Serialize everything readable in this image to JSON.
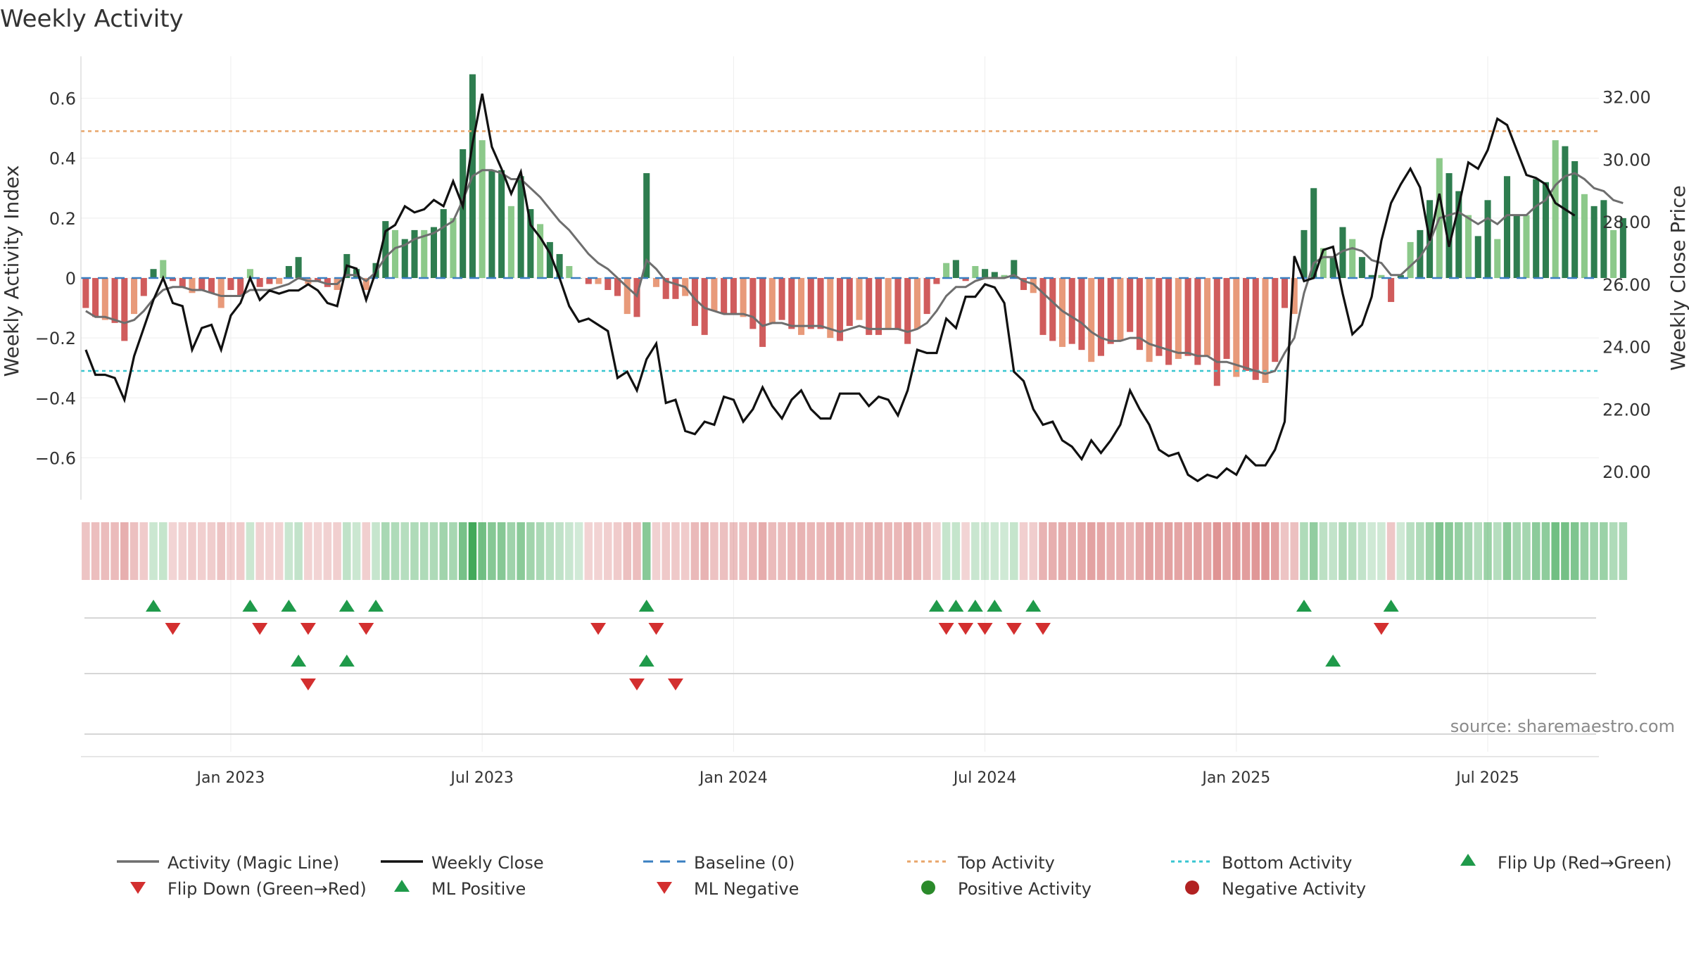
{
  "chart_data": {
    "type": "bar",
    "title": "Weekly Activity",
    "ylabel": "Weekly Activity Index",
    "y2label": "Weekly Close Price",
    "ylim": [
      -0.74,
      0.74
    ],
    "y2lim": [
      19.1,
      33.3
    ],
    "xrange": [
      -0.5,
      156.5
    ],
    "yticks": [
      0.6,
      0.4,
      0.2,
      0,
      -0.2,
      -0.4,
      -0.6
    ],
    "ytick_labels": [
      "0.6",
      "0.4",
      "0.2",
      "0",
      "−0.2",
      "−0.4",
      "−0.6"
    ],
    "y2ticks": [
      32,
      30,
      28,
      26,
      24,
      22,
      20
    ],
    "y2tick_labels": [
      "32.00",
      "30.00",
      "28.00",
      "26.00",
      "24.00",
      "22.00",
      "20.00"
    ],
    "xticks": [
      {
        "week": 15,
        "label": "Jan 2023"
      },
      {
        "week": 41,
        "label": "Jul 2023"
      },
      {
        "week": 67,
        "label": "Jan 2024"
      },
      {
        "week": 93,
        "label": "Jul 2024"
      },
      {
        "week": 119,
        "label": "Jan 2025"
      },
      {
        "week": 145,
        "label": "Jul 2025"
      }
    ],
    "top_activity": 0.49,
    "bottom_activity": -0.31,
    "baseline": 0,
    "colors": {
      "pos_strong": "#2e7d4f",
      "pos_light": "#8cc98a",
      "neg_strong": "#d05c5c",
      "neg_light": "#e89a7a",
      "magic": "#6e6e6e",
      "close": "#111111",
      "baseline": "#3a7fc1",
      "top": "#e8a56a",
      "bottom": "#38c6d0",
      "tri_up": "#1f9a4a",
      "tri_down": "#d32f2f",
      "dot_pos": "#2a8a2a",
      "dot_neg": "#b22222"
    },
    "activity": [
      -0.1,
      -0.13,
      -0.14,
      -0.15,
      -0.21,
      -0.12,
      -0.06,
      0.03,
      0.06,
      -0.01,
      -0.03,
      -0.05,
      -0.04,
      -0.05,
      -0.1,
      -0.04,
      -0.06,
      0.03,
      -0.03,
      -0.02,
      -0.02,
      0.04,
      0.07,
      -0.02,
      -0.01,
      -0.03,
      -0.04,
      0.08,
      0.03,
      -0.04,
      0.05,
      0.19,
      0.16,
      0.13,
      0.16,
      0.16,
      0.17,
      0.23,
      0.2,
      0.43,
      0.68,
      0.46,
      0.36,
      0.36,
      0.24,
      0.34,
      0.23,
      0.18,
      0.12,
      0.08,
      0.04,
      0,
      -0.02,
      -0.02,
      -0.04,
      -0.06,
      -0.12,
      -0.13,
      0.35,
      -0.03,
      -0.07,
      -0.07,
      -0.06,
      -0.16,
      -0.19,
      -0.11,
      -0.12,
      -0.12,
      -0.13,
      -0.17,
      -0.23,
      -0.15,
      -0.14,
      -0.17,
      -0.19,
      -0.17,
      -0.17,
      -0.2,
      -0.21,
      -0.16,
      -0.14,
      -0.19,
      -0.19,
      -0.17,
      -0.17,
      -0.22,
      -0.17,
      -0.12,
      -0.02,
      0.05,
      0.06,
      -0.01,
      0.04,
      0.03,
      0.02,
      0.01,
      0.06,
      -0.04,
      -0.05,
      -0.19,
      -0.21,
      -0.23,
      -0.22,
      -0.24,
      -0.28,
      -0.26,
      -0.22,
      -0.21,
      -0.18,
      -0.24,
      -0.28,
      -0.26,
      -0.29,
      -0.27,
      -0.26,
      -0.29,
      -0.26,
      -0.36,
      -0.27,
      -0.33,
      -0.31,
      -0.34,
      -0.35,
      -0.28,
      -0.1,
      -0.12,
      0.16,
      0.3,
      0.1,
      0.07,
      0.17,
      0.13,
      0.07,
      0.01,
      0.01,
      -0.08,
      0.01,
      0.12,
      0.16,
      0.26,
      0.4,
      0.35,
      0.29,
      0.21,
      0.14,
      0.26,
      0.13,
      0.34,
      0.21,
      0.21,
      0.33,
      0.32,
      0.46,
      0.44,
      0.39,
      0.28,
      0.24,
      0.26,
      0.16,
      0.2
    ],
    "magic_line": [
      -0.11,
      -0.13,
      -0.13,
      -0.14,
      -0.15,
      -0.14,
      -0.11,
      -0.07,
      -0.04,
      -0.03,
      -0.03,
      -0.04,
      -0.04,
      -0.05,
      -0.06,
      -0.06,
      -0.06,
      -0.04,
      -0.04,
      -0.04,
      -0.03,
      -0.02,
      0,
      -0.01,
      -0.01,
      -0.02,
      -0.02,
      0.01,
      0.01,
      -0.01,
      0.02,
      0.07,
      0.1,
      0.11,
      0.13,
      0.14,
      0.15,
      0.17,
      0.19,
      0.26,
      0.34,
      0.36,
      0.36,
      0.35,
      0.33,
      0.33,
      0.3,
      0.27,
      0.23,
      0.19,
      0.16,
      0.12,
      0.08,
      0.05,
      0.03,
      0,
      -0.03,
      -0.06,
      0.06,
      0.03,
      -0.01,
      -0.02,
      -0.03,
      -0.07,
      -0.1,
      -0.11,
      -0.12,
      -0.12,
      -0.12,
      -0.13,
      -0.16,
      -0.15,
      -0.15,
      -0.16,
      -0.16,
      -0.16,
      -0.16,
      -0.17,
      -0.18,
      -0.17,
      -0.16,
      -0.17,
      -0.17,
      -0.17,
      -0.17,
      -0.18,
      -0.17,
      -0.15,
      -0.11,
      -0.06,
      -0.03,
      -0.03,
      -0.01,
      0,
      0,
      0,
      0.01,
      -0.01,
      -0.02,
      -0.05,
      -0.08,
      -0.11,
      -0.13,
      -0.15,
      -0.18,
      -0.2,
      -0.21,
      -0.21,
      -0.2,
      -0.2,
      -0.22,
      -0.23,
      -0.24,
      -0.25,
      -0.25,
      -0.26,
      -0.26,
      -0.28,
      -0.28,
      -0.29,
      -0.3,
      -0.31,
      -0.32,
      -0.31,
      -0.25,
      -0.2,
      -0.05,
      0.05,
      0.07,
      0.07,
      0.09,
      0.1,
      0.09,
      0.06,
      0.05,
      0.01,
      0.01,
      0.04,
      0.07,
      0.12,
      0.2,
      0.21,
      0.22,
      0.2,
      0.18,
      0.2,
      0.18,
      0.21,
      0.21,
      0.21,
      0.24,
      0.26,
      0.31,
      0.34,
      0.35,
      0.33,
      0.3,
      0.29,
      0.26,
      0.25
    ],
    "weekly_close": [
      23.9,
      23.1,
      23.1,
      23.0,
      22.3,
      23.7,
      24.6,
      25.5,
      26.2,
      25.4,
      25.3,
      23.9,
      24.6,
      24.7,
      23.9,
      25.0,
      25.4,
      26.2,
      25.5,
      25.8,
      25.7,
      25.8,
      25.8,
      26.0,
      25.8,
      25.4,
      25.3,
      26.6,
      26.5,
      25.5,
      26.4,
      27.7,
      27.9,
      28.5,
      28.3,
      28.4,
      28.7,
      28.5,
      29.3,
      28.5,
      30.5,
      32.1,
      30.4,
      29.7,
      28.9,
      29.6,
      27.9,
      27.5,
      27.0,
      26.2,
      25.3,
      24.8,
      24.9,
      24.7,
      24.5,
      23.0,
      23.2,
      22.6,
      23.6,
      24.1,
      22.2,
      22.3,
      21.3,
      21.2,
      21.6,
      21.5,
      22.4,
      22.3,
      21.6,
      22.0,
      22.7,
      22.1,
      21.7,
      22.3,
      22.6,
      22.0,
      21.7,
      21.7,
      22.5,
      22.5,
      22.5,
      22.1,
      22.4,
      22.3,
      21.8,
      22.6,
      23.9,
      23.8,
      23.8,
      24.9,
      24.6,
      25.6,
      25.6,
      26.0,
      25.9,
      25.4,
      23.2,
      22.9,
      22.0,
      21.5,
      21.6,
      21.0,
      20.8,
      20.4,
      21.0,
      20.6,
      21.0,
      21.5,
      22.6,
      22.0,
      21.5,
      20.7,
      20.5,
      20.6,
      19.9,
      19.7,
      19.9,
      19.8,
      20.1,
      19.9,
      20.5,
      20.2,
      20.2,
      20.7,
      21.6,
      26.9,
      26.1,
      26.2,
      27.1,
      27.2,
      25.7,
      24.4,
      24.7,
      25.6,
      27.4,
      28.6,
      29.2,
      29.7,
      29.1,
      27.4,
      28.9,
      27.2,
      28.5,
      29.9,
      29.7,
      30.3,
      31.3,
      31.1,
      30.3,
      29.5,
      29.4,
      29.2,
      28.6,
      28.4,
      28.2
    ],
    "heat_cells": [
      "-0.10",
      "-0.08"
    ],
    "flip_up": [
      7,
      17,
      21,
      27,
      30,
      58,
      88,
      90,
      92,
      94,
      98,
      126,
      135
    ],
    "flip_down": [
      9,
      18,
      23,
      29,
      53,
      59,
      89,
      91,
      93,
      96,
      99,
      134
    ],
    "ml_positive": [
      22,
      27,
      58,
      129
    ],
    "ml_negative": [
      23,
      57,
      61
    ],
    "positive_activity": [],
    "negative_activity": [],
    "source": "source: sharemaestro.com",
    "legend": [
      {
        "label": "Activity (Magic Line)",
        "kind": "line",
        "color": "#6e6e6e"
      },
      {
        "label": "Weekly Close",
        "kind": "line",
        "color": "#111111"
      },
      {
        "label": "Baseline (0)",
        "kind": "dash",
        "color": "#3a7fc1"
      },
      {
        "label": "Top Activity",
        "kind": "dot",
        "color": "#e8a56a"
      },
      {
        "label": "Bottom Activity",
        "kind": "dot",
        "color": "#38c6d0"
      },
      {
        "label": "Flip Up (Red→Green)",
        "kind": "tri-up",
        "color": "#1f9a4a"
      },
      {
        "label": "Flip Down (Green→Red)",
        "kind": "tri-down",
        "color": "#d32f2f"
      },
      {
        "label": "ML Positive",
        "kind": "tri-up",
        "color": "#1f9a4a"
      },
      {
        "label": "ML Negative",
        "kind": "tri-down",
        "color": "#d32f2f"
      },
      {
        "label": "Positive Activity",
        "kind": "circle",
        "color": "#2a8a2a"
      },
      {
        "label": "Negative Activity",
        "kind": "circle",
        "color": "#b22222"
      }
    ]
  }
}
